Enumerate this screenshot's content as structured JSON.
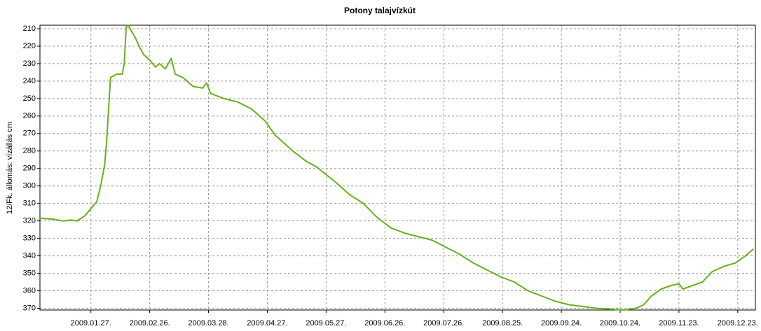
{
  "chart_data": {
    "type": "line",
    "title": "Potony talajvízkút",
    "y_label": "12/Fk. állomás: vízállás cm",
    "x": [
      "2009-01-01",
      "2009-01-08",
      "2009-01-13",
      "2009-01-17",
      "2009-01-20",
      "2009-01-24",
      "2009-01-27",
      "2009-01-30",
      "2009-02-01",
      "2009-02-03",
      "2009-02-04",
      "2009-02-06",
      "2009-02-09",
      "2009-02-12",
      "2009-02-13",
      "2009-02-14",
      "2009-02-15",
      "2009-02-17",
      "2009-02-19",
      "2009-02-21",
      "2009-02-23",
      "2009-02-26",
      "2009-03-01",
      "2009-03-03",
      "2009-03-06",
      "2009-03-09",
      "2009-03-11",
      "2009-03-15",
      "2009-03-20",
      "2009-03-25",
      "2009-03-27",
      "2009-03-29",
      "2009-04-05",
      "2009-04-12",
      "2009-04-19",
      "2009-04-26",
      "2009-05-01",
      "2009-05-05",
      "2009-05-10",
      "2009-05-17",
      "2009-05-22",
      "2009-06-01",
      "2009-06-08",
      "2009-06-15",
      "2009-06-22",
      "2009-06-29",
      "2009-07-06",
      "2009-07-13",
      "2009-07-20",
      "2009-07-27",
      "2009-08-03",
      "2009-08-10",
      "2009-08-17",
      "2009-08-24",
      "2009-08-31",
      "2009-09-07",
      "2009-09-14",
      "2009-09-21",
      "2009-09-28",
      "2009-10-05",
      "2009-10-12",
      "2009-10-19",
      "2009-10-26",
      "2009-11-01",
      "2009-11-05",
      "2009-11-09",
      "2009-11-14",
      "2009-11-19",
      "2009-11-23",
      "2009-11-25",
      "2009-11-30",
      "2009-12-05",
      "2009-12-10",
      "2009-12-16",
      "2009-12-22",
      "2009-12-27",
      "2009-12-31"
    ],
    "series": [
      {
        "name": "12/Fk. állomás",
        "color": "#66b21a",
        "values": [
          318.5,
          319,
          320,
          319.5,
          320,
          317,
          313,
          309,
          300,
          288,
          275,
          238,
          236,
          236,
          230,
          209,
          208,
          212,
          216,
          221,
          225,
          228,
          232,
          230,
          233,
          227,
          236,
          238,
          243,
          244,
          241,
          247,
          250,
          252,
          256,
          263,
          271,
          275,
          280,
          286,
          289,
          298,
          305,
          310,
          318,
          324,
          327,
          329,
          331,
          335,
          339,
          344,
          348,
          352,
          355,
          360,
          363,
          366,
          368,
          369,
          370,
          370.5,
          371,
          370,
          368,
          363,
          359,
          357,
          356,
          359,
          357,
          355,
          349,
          346,
          344,
          340,
          336
        ]
      }
    ],
    "xlim": [
      "2009-01-01",
      "2010-01-01"
    ],
    "xticks": [
      {
        "value": "2009-01-27",
        "label": "2009.01.27."
      },
      {
        "value": "2009-02-26",
        "label": "2009.02.26."
      },
      {
        "value": "2009-03-28",
        "label": "2009.03.28."
      },
      {
        "value": "2009-04-27",
        "label": "2009.04.27."
      },
      {
        "value": "2009-05-27",
        "label": "2009.05.27."
      },
      {
        "value": "2009-06-26",
        "label": "2009.06.26."
      },
      {
        "value": "2009-07-26",
        "label": "2009.07.26."
      },
      {
        "value": "2009-08-25",
        "label": "2009.08.25."
      },
      {
        "value": "2009-09-24",
        "label": "2009.09.24."
      },
      {
        "value": "2009-10-24",
        "label": "2009.10.24."
      },
      {
        "value": "2009-11-23",
        "label": "2009.11.23."
      },
      {
        "value": "2009-12-23",
        "label": "2009.12.23."
      }
    ],
    "ylim": [
      371,
      208
    ],
    "yticks": [
      210,
      220,
      230,
      240,
      250,
      260,
      270,
      280,
      290,
      300,
      310,
      320,
      330,
      340,
      350,
      360,
      370
    ],
    "grid": true
  }
}
